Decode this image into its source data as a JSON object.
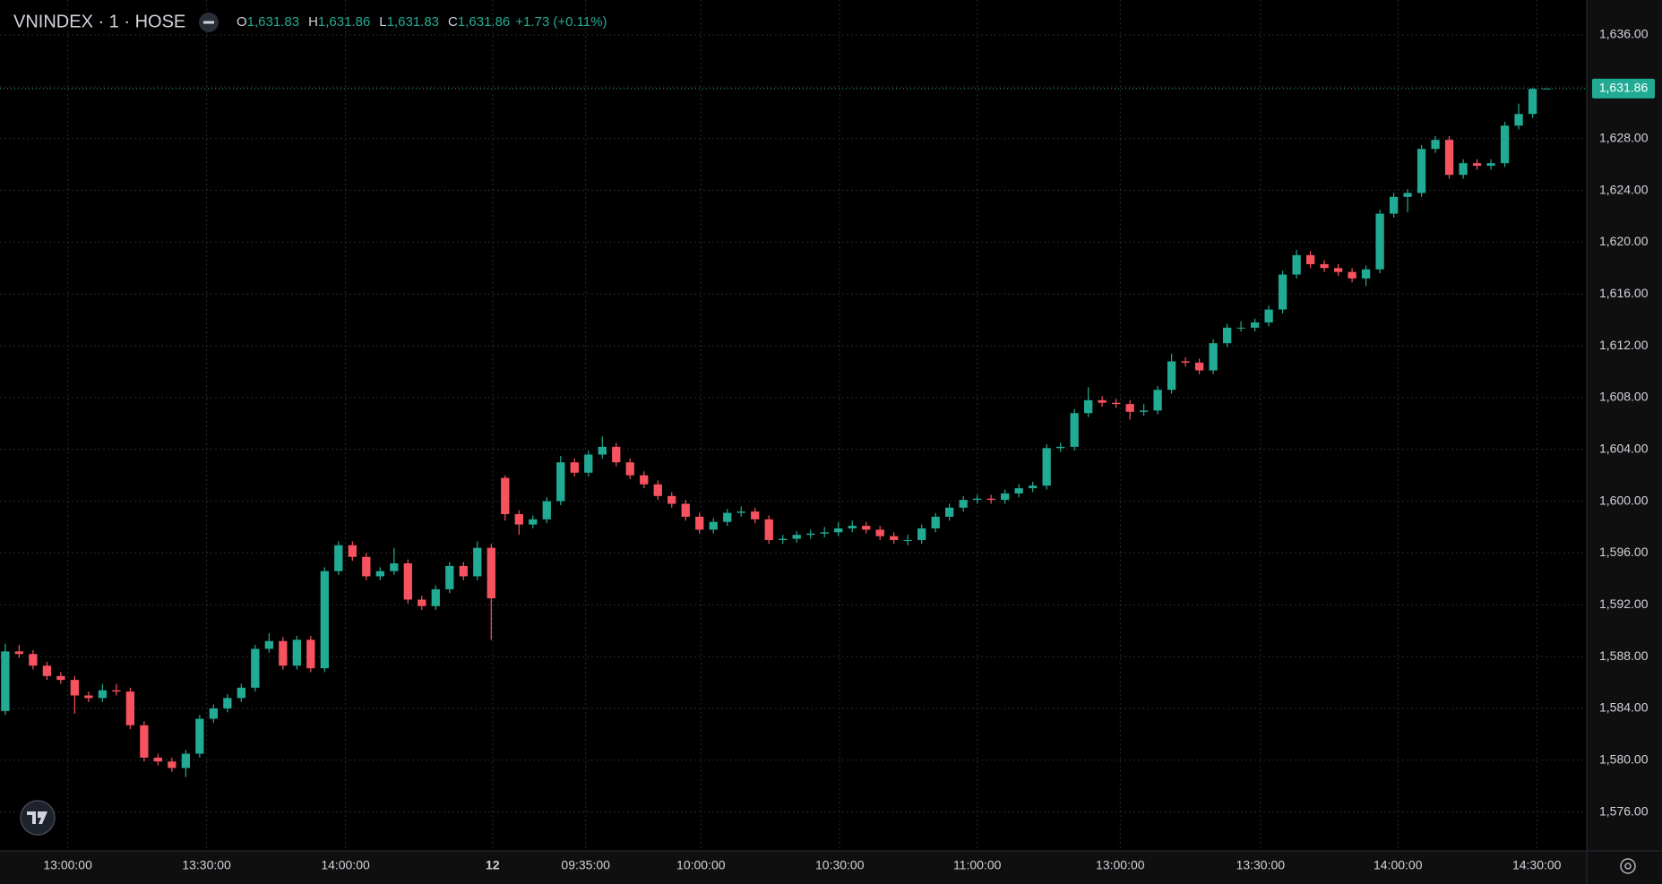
{
  "chart_data": {
    "type": "candlestick",
    "title": "VNINDEX · 1 · HOSE",
    "legend_values": [
      {
        "key": "O",
        "value": "1,631.83"
      },
      {
        "key": "H",
        "value": "1,631.86"
      },
      {
        "key": "L",
        "value": "1,631.83"
      },
      {
        "key": "C",
        "value": "1,631.86"
      }
    ],
    "change": "+1.73 (+0.11%)",
    "last_price": {
      "value": 1631.86,
      "label": "1,631.86"
    },
    "up_color": "#22ab94",
    "down_color": "#f7525f",
    "grid": true,
    "xlim": [
      -0.38,
      113.9
    ],
    "ylim": [
      1573.0,
      1638.7
    ],
    "xticks": [
      {
        "value": 4.5,
        "label": "13:00:00"
      },
      {
        "value": 14.5,
        "label": "13:30:00"
      },
      {
        "value": 24.5,
        "label": "14:00:00"
      },
      {
        "value": 35.1,
        "label": "12"
      },
      {
        "value": 41.8,
        "label": "09:35:00"
      },
      {
        "value": 50.1,
        "label": "10:00:00"
      },
      {
        "value": 60.1,
        "label": "10:30:00"
      },
      {
        "value": 70.0,
        "label": "11:00:00"
      },
      {
        "value": 80.3,
        "label": "13:00:00"
      },
      {
        "value": 90.4,
        "label": "13:30:00"
      },
      {
        "value": 100.3,
        "label": "14:00:00"
      },
      {
        "value": 110.3,
        "label": "14:30:00"
      }
    ],
    "yticks": [
      {
        "value": 1576,
        "label": "1,576.00"
      },
      {
        "value": 1580,
        "label": "1,580.00"
      },
      {
        "value": 1584,
        "label": "1,584.00"
      },
      {
        "value": 1588,
        "label": "1,588.00"
      },
      {
        "value": 1592,
        "label": "1,592.00"
      },
      {
        "value": 1596,
        "label": "1,596.00"
      },
      {
        "value": 1600,
        "label": "1,600.00"
      },
      {
        "value": 1604,
        "label": "1,604.00"
      },
      {
        "value": 1608,
        "label": "1,608.00"
      },
      {
        "value": 1612,
        "label": "1,612.00"
      },
      {
        "value": 1616,
        "label": "1,616.00"
      },
      {
        "value": 1620,
        "label": "1,620.00"
      },
      {
        "value": 1624,
        "label": "1,624.00"
      },
      {
        "value": 1628,
        "label": "1,628.00"
      },
      {
        "value": 1632,
        "label": "1,632.00"
      },
      {
        "value": 1636,
        "label": "1,636.00"
      }
    ],
    "candles": [
      [
        1583.8,
        1589.0,
        1583.5,
        1588.4
      ],
      [
        1588.4,
        1588.9,
        1587.9,
        1588.2
      ],
      [
        1588.2,
        1588.5,
        1587.0,
        1587.3
      ],
      [
        1587.3,
        1587.6,
        1586.2,
        1586.5
      ],
      [
        1586.5,
        1586.8,
        1585.9,
        1586.2
      ],
      [
        1586.2,
        1586.5,
        1583.6,
        1585.0
      ],
      [
        1585.0,
        1585.3,
        1584.5,
        1584.8
      ],
      [
        1584.8,
        1585.9,
        1584.5,
        1585.4
      ],
      [
        1585.4,
        1585.9,
        1585.0,
        1585.3
      ],
      [
        1585.3,
        1585.6,
        1582.4,
        1582.7
      ],
      [
        1582.7,
        1583.0,
        1579.9,
        1580.2
      ],
      [
        1580.2,
        1580.5,
        1579.6,
        1579.9
      ],
      [
        1579.9,
        1580.2,
        1579.1,
        1579.4
      ],
      [
        1579.4,
        1580.8,
        1578.7,
        1580.5
      ],
      [
        1580.5,
        1583.5,
        1580.2,
        1583.2
      ],
      [
        1583.2,
        1584.3,
        1582.9,
        1584.0
      ],
      [
        1584.0,
        1585.1,
        1583.7,
        1584.8
      ],
      [
        1584.8,
        1585.9,
        1584.5,
        1585.6
      ],
      [
        1585.6,
        1588.9,
        1585.3,
        1588.6
      ],
      [
        1588.6,
        1589.8,
        1588.3,
        1589.2
      ],
      [
        1589.2,
        1589.5,
        1587.0,
        1587.3
      ],
      [
        1587.3,
        1589.6,
        1587.0,
        1589.3
      ],
      [
        1589.3,
        1589.6,
        1586.8,
        1587.1
      ],
      [
        1587.1,
        1594.9,
        1586.8,
        1594.6
      ],
      [
        1594.6,
        1596.9,
        1594.3,
        1596.6
      ],
      [
        1596.6,
        1596.9,
        1595.4,
        1595.7
      ],
      [
        1595.7,
        1596.0,
        1593.9,
        1594.2
      ],
      [
        1594.2,
        1594.9,
        1593.9,
        1594.6
      ],
      [
        1594.6,
        1596.4,
        1594.3,
        1595.2
      ],
      [
        1595.2,
        1595.5,
        1592.1,
        1592.4
      ],
      [
        1592.4,
        1592.7,
        1591.6,
        1591.9
      ],
      [
        1591.9,
        1593.5,
        1591.6,
        1593.2
      ],
      [
        1593.2,
        1595.3,
        1592.9,
        1595.0
      ],
      [
        1595.0,
        1595.3,
        1593.9,
        1594.2
      ],
      [
        1594.2,
        1596.9,
        1593.9,
        1596.4
      ],
      [
        1596.4,
        1596.7,
        1589.3,
        1592.5
      ],
      [
        1601.8,
        1602.0,
        1598.5,
        1599.0
      ],
      [
        1599.0,
        1599.3,
        1597.4,
        1598.2
      ],
      [
        1598.2,
        1598.9,
        1597.9,
        1598.6
      ],
      [
        1598.6,
        1600.3,
        1598.3,
        1600.0
      ],
      [
        1600.0,
        1603.5,
        1599.7,
        1603.0
      ],
      [
        1603.0,
        1603.3,
        1601.9,
        1602.2
      ],
      [
        1602.2,
        1603.9,
        1601.9,
        1603.6
      ],
      [
        1603.6,
        1605.0,
        1603.3,
        1604.2
      ],
      [
        1604.2,
        1604.5,
        1602.7,
        1603.0
      ],
      [
        1603.0,
        1603.3,
        1601.7,
        1602.0
      ],
      [
        1602.0,
        1602.3,
        1601.0,
        1601.3
      ],
      [
        1601.3,
        1601.6,
        1600.1,
        1600.4
      ],
      [
        1600.4,
        1600.7,
        1599.5,
        1599.8
      ],
      [
        1599.8,
        1600.1,
        1598.5,
        1598.8
      ],
      [
        1598.8,
        1599.1,
        1597.5,
        1597.8
      ],
      [
        1597.8,
        1598.7,
        1597.5,
        1598.4
      ],
      [
        1598.4,
        1599.4,
        1598.1,
        1599.1
      ],
      [
        1599.1,
        1599.6,
        1598.8,
        1599.2
      ],
      [
        1599.2,
        1599.5,
        1598.3,
        1598.6
      ],
      [
        1598.6,
        1598.9,
        1596.7,
        1597.0
      ],
      [
        1597.0,
        1597.4,
        1596.7,
        1597.1
      ],
      [
        1597.1,
        1597.7,
        1596.8,
        1597.4
      ],
      [
        1597.4,
        1597.8,
        1597.1,
        1597.5
      ],
      [
        1597.5,
        1598.0,
        1597.2,
        1597.6
      ],
      [
        1597.6,
        1598.4,
        1597.3,
        1597.9
      ],
      [
        1597.9,
        1598.5,
        1597.6,
        1598.1
      ],
      [
        1598.1,
        1598.4,
        1597.5,
        1597.8
      ],
      [
        1597.8,
        1598.1,
        1597.0,
        1597.3
      ],
      [
        1597.3,
        1597.6,
        1596.7,
        1597.0
      ],
      [
        1597.0,
        1597.4,
        1596.6,
        1597.0
      ],
      [
        1597.0,
        1598.2,
        1596.7,
        1597.9
      ],
      [
        1597.9,
        1599.1,
        1597.6,
        1598.8
      ],
      [
        1598.8,
        1599.8,
        1598.5,
        1599.5
      ],
      [
        1599.5,
        1600.4,
        1599.2,
        1600.1
      ],
      [
        1600.1,
        1600.5,
        1599.8,
        1600.2
      ],
      [
        1600.2,
        1600.5,
        1599.8,
        1600.1
      ],
      [
        1600.1,
        1600.9,
        1599.8,
        1600.6
      ],
      [
        1600.6,
        1601.3,
        1600.3,
        1601.0
      ],
      [
        1601.0,
        1601.5,
        1600.7,
        1601.2
      ],
      [
        1601.2,
        1604.4,
        1600.9,
        1604.1
      ],
      [
        1604.1,
        1604.5,
        1603.8,
        1604.2
      ],
      [
        1604.2,
        1607.1,
        1603.9,
        1606.8
      ],
      [
        1606.8,
        1608.8,
        1606.5,
        1607.8
      ],
      [
        1607.8,
        1608.1,
        1607.3,
        1607.6
      ],
      [
        1607.6,
        1607.9,
        1607.2,
        1607.5
      ],
      [
        1607.5,
        1607.8,
        1606.3,
        1606.9
      ],
      [
        1606.9,
        1607.5,
        1606.6,
        1607.0
      ],
      [
        1607.0,
        1608.9,
        1606.7,
        1608.6
      ],
      [
        1608.6,
        1611.4,
        1608.3,
        1610.8
      ],
      [
        1610.8,
        1611.1,
        1610.4,
        1610.7
      ],
      [
        1610.7,
        1611.0,
        1609.8,
        1610.1
      ],
      [
        1610.1,
        1612.5,
        1609.8,
        1612.2
      ],
      [
        1612.2,
        1613.7,
        1611.9,
        1613.4
      ],
      [
        1613.4,
        1613.9,
        1613.1,
        1613.4
      ],
      [
        1613.4,
        1614.1,
        1613.1,
        1613.8
      ],
      [
        1613.8,
        1615.1,
        1613.5,
        1614.8
      ],
      [
        1614.8,
        1617.8,
        1614.5,
        1617.5
      ],
      [
        1617.5,
        1619.4,
        1617.2,
        1619.0
      ],
      [
        1619.0,
        1619.3,
        1618.0,
        1618.3
      ],
      [
        1618.3,
        1618.6,
        1617.7,
        1618.0
      ],
      [
        1618.0,
        1618.3,
        1617.4,
        1617.7
      ],
      [
        1617.7,
        1618.0,
        1616.9,
        1617.2
      ],
      [
        1617.2,
        1618.2,
        1616.6,
        1617.9
      ],
      [
        1617.9,
        1622.5,
        1617.6,
        1622.2
      ],
      [
        1622.2,
        1623.8,
        1621.9,
        1623.5
      ],
      [
        1623.5,
        1624.1,
        1622.3,
        1623.8
      ],
      [
        1623.8,
        1627.5,
        1623.5,
        1627.2
      ],
      [
        1627.2,
        1628.2,
        1626.9,
        1627.9
      ],
      [
        1627.9,
        1628.2,
        1624.9,
        1625.2
      ],
      [
        1625.2,
        1626.4,
        1624.9,
        1626.1
      ],
      [
        1626.1,
        1626.4,
        1625.6,
        1625.9
      ],
      [
        1625.9,
        1626.4,
        1625.6,
        1626.1
      ],
      [
        1626.1,
        1629.3,
        1625.8,
        1629.0
      ],
      [
        1629.0,
        1630.7,
        1628.7,
        1629.9
      ],
      [
        1629.9,
        1631.9,
        1629.6,
        1631.83
      ],
      [
        1631.83,
        1631.86,
        1631.83,
        1631.86
      ]
    ]
  }
}
